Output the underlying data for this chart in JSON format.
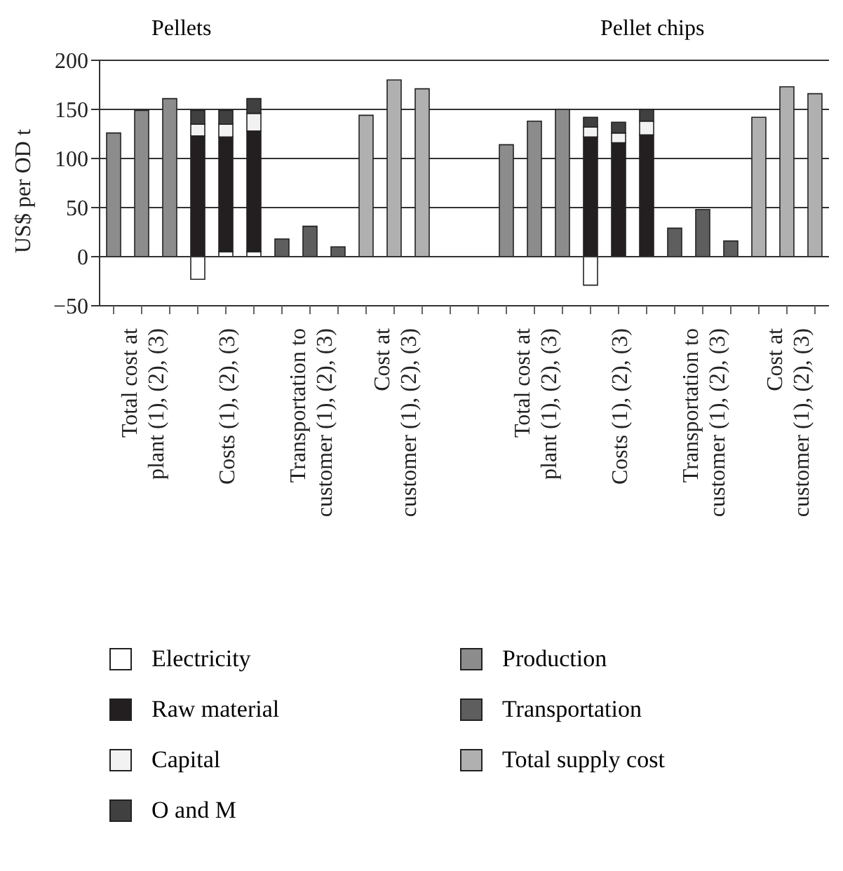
{
  "chart_data": {
    "type": "bar",
    "stacked": true,
    "ylabel": "US$ per OD t",
    "annotations": [
      "Pellets",
      "Pellet chips"
    ],
    "categories": [
      null,
      "Total cost at plant (1), (2), (3)",
      null,
      null,
      "Costs (1), (2), (3)",
      null,
      null,
      "Transportation to customer (1), (2), (3)",
      null,
      null,
      "Cost at customer (1), (2), (3)",
      null,
      null,
      null,
      null,
      "Total cost at plant (1), (2), (3)",
      null,
      null,
      "Costs (1), (2), (3)",
      null,
      null,
      "Transportation to customer (1), (2), (3)",
      null,
      null,
      "Cost at customer (1), (2), (3)",
      null
    ],
    "series": [
      {
        "name": "Electricity",
        "color": "#ffffff",
        "values": [
          null,
          null,
          null,
          -23,
          5,
          5,
          null,
          null,
          null,
          null,
          null,
          null,
          null,
          null,
          null,
          null,
          null,
          -29,
          null,
          null,
          null,
          null,
          null,
          null,
          null,
          null
        ]
      },
      {
        "name": "Raw material",
        "color": "#231f20",
        "values": [
          null,
          null,
          null,
          123,
          117,
          123,
          null,
          null,
          null,
          null,
          null,
          null,
          null,
          null,
          null,
          null,
          null,
          122,
          116,
          124,
          null,
          null,
          null,
          null,
          null,
          null
        ]
      },
      {
        "name": "Capital",
        "color": "#f2f2f2",
        "values": [
          null,
          null,
          null,
          12,
          13,
          18,
          null,
          null,
          null,
          null,
          null,
          null,
          null,
          null,
          null,
          null,
          null,
          10,
          10,
          14,
          null,
          null,
          null,
          null,
          null,
          null
        ]
      },
      {
        "name": "O and M",
        "color": "#404040",
        "values": [
          null,
          null,
          null,
          14,
          14,
          15,
          null,
          null,
          null,
          null,
          null,
          null,
          null,
          null,
          null,
          null,
          null,
          10,
          11,
          12,
          null,
          null,
          null,
          null,
          null,
          null
        ]
      },
      {
        "name": "Production",
        "color": "#8c8c8c",
        "values": [
          126,
          149,
          161,
          null,
          null,
          null,
          null,
          null,
          null,
          null,
          null,
          null,
          null,
          null,
          114,
          138,
          150,
          null,
          null,
          null,
          null,
          null,
          null,
          null,
          null,
          null
        ]
      },
      {
        "name": "Transportation",
        "color": "#5e5e5e",
        "values": [
          null,
          null,
          null,
          null,
          null,
          null,
          18,
          31,
          10,
          null,
          null,
          null,
          null,
          null,
          null,
          null,
          null,
          null,
          null,
          null,
          29,
          48,
          16,
          null,
          null,
          null
        ]
      },
      {
        "name": "Total supply cost",
        "color": "#b0b0b0",
        "values": [
          null,
          null,
          null,
          null,
          null,
          null,
          null,
          null,
          null,
          144,
          180,
          171,
          null,
          null,
          null,
          null,
          null,
          null,
          null,
          null,
          null,
          null,
          null,
          142,
          173,
          166
        ]
      }
    ],
    "ylim": [
      -50,
      200
    ],
    "yticks": [
      {
        "value": -50,
        "label": "−50"
      },
      0,
      50,
      100,
      150,
      200
    ],
    "grid": "y",
    "legend": "bottom"
  }
}
